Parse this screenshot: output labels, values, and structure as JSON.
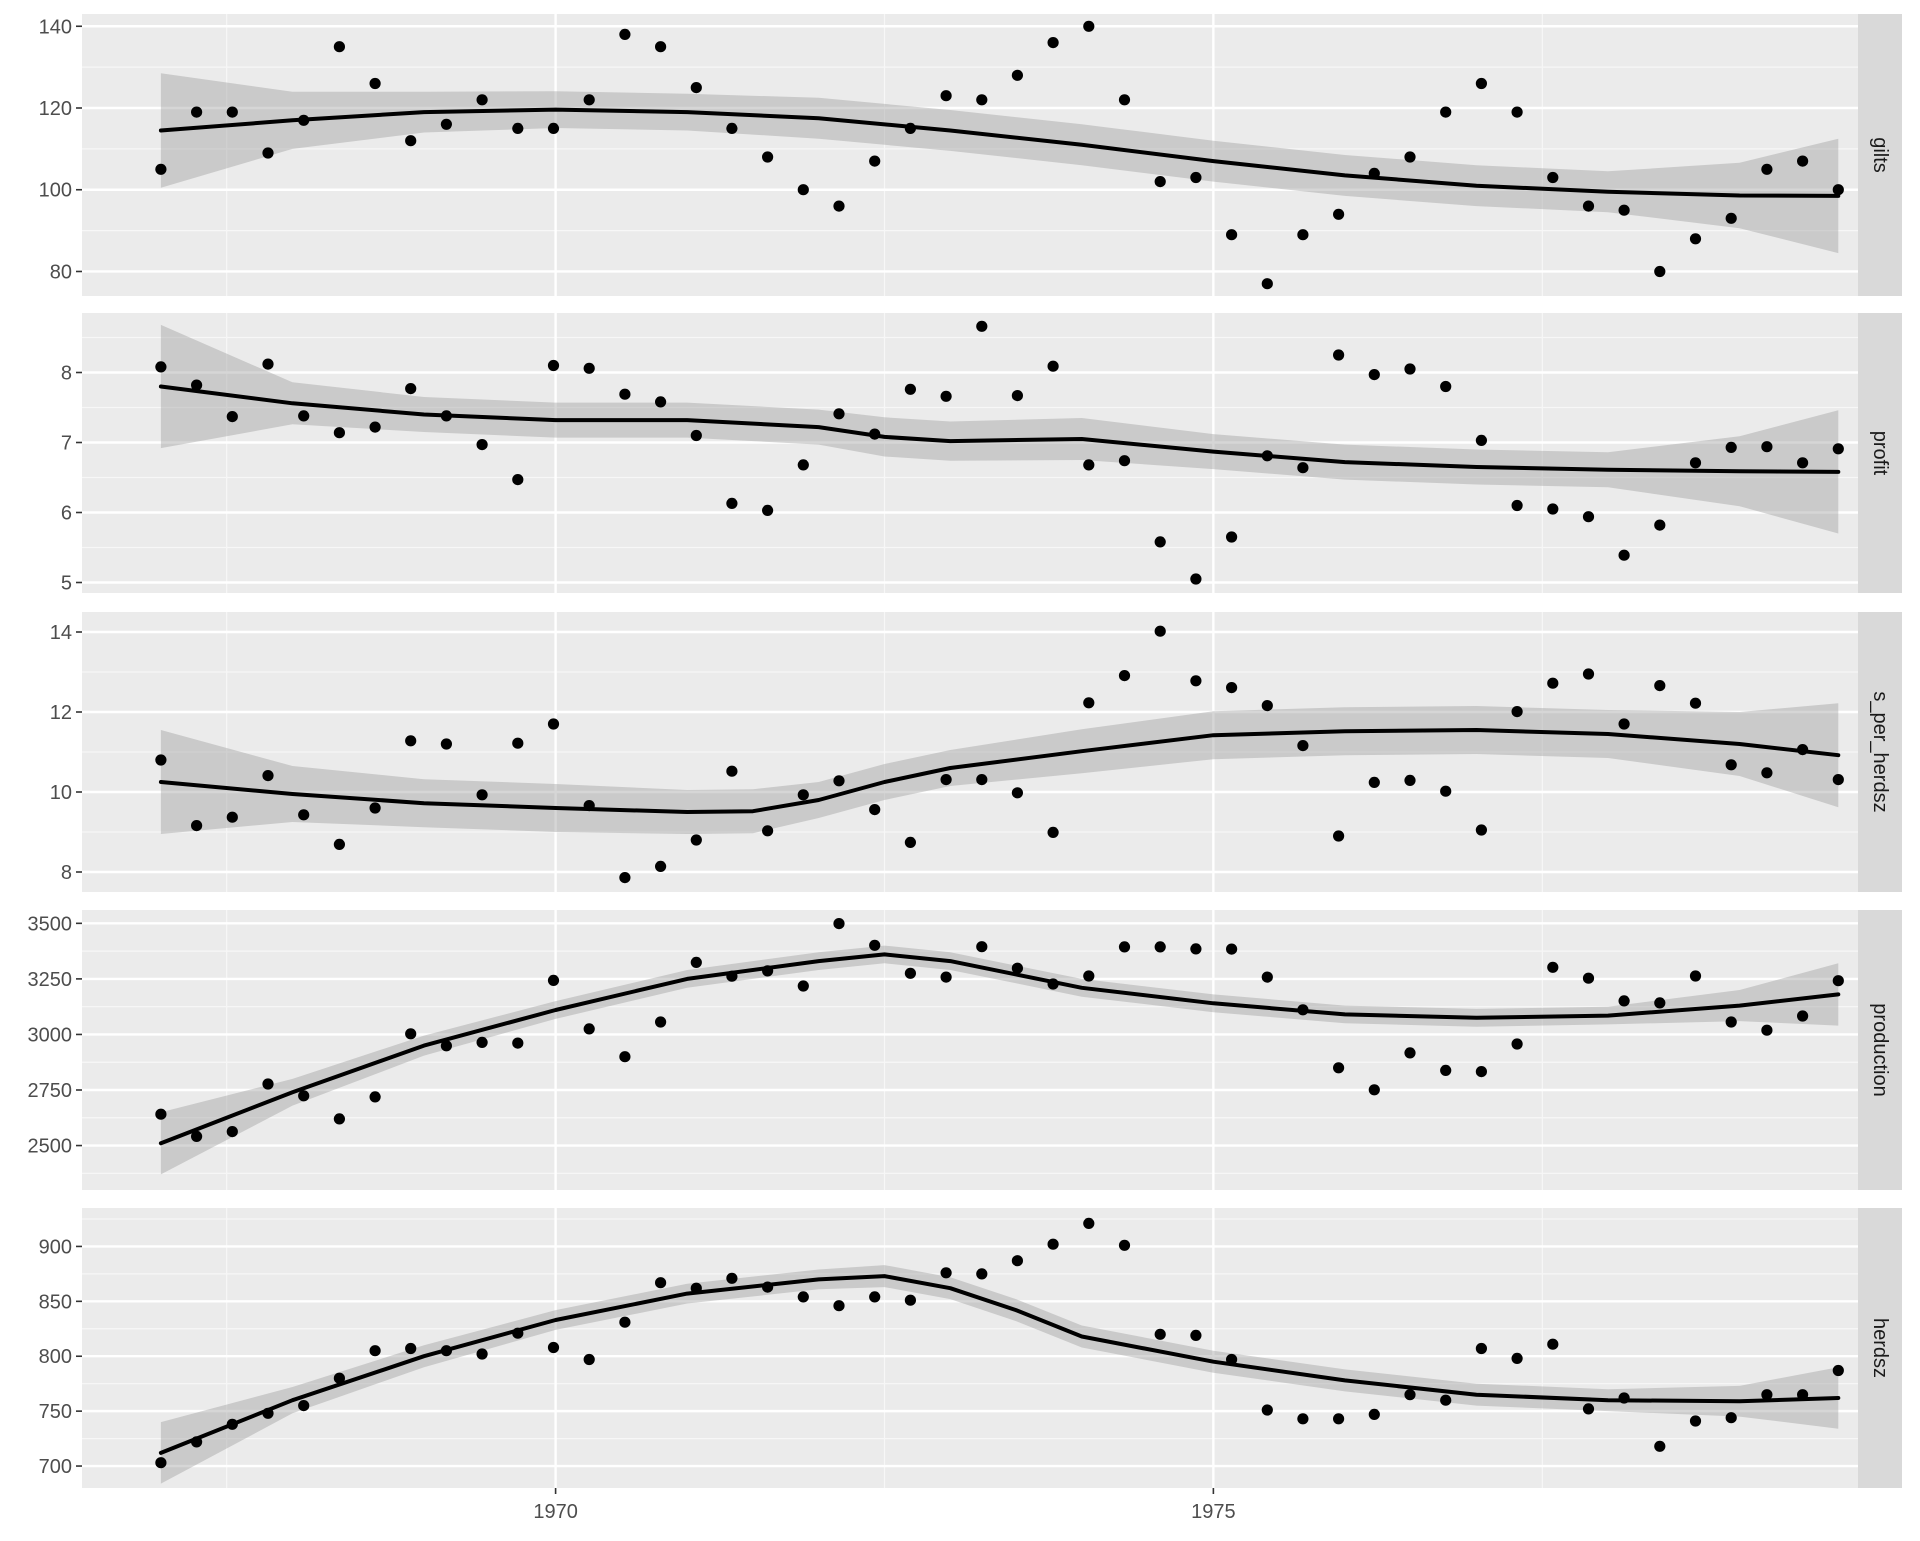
{
  "chart_data": {
    "type": "scatter",
    "x_axis": {
      "range": [
        1966.4,
        1979.9
      ],
      "ticks": [
        1970,
        1975
      ],
      "tick_labels": [
        "1970",
        "1975"
      ]
    },
    "facets": [
      {
        "label": "gilts",
        "ylim": [
          74,
          143
        ],
        "yticks": [
          80,
          100,
          120,
          140
        ],
        "points": [
          105,
          119,
          119,
          109,
          117,
          135,
          126,
          112,
          116,
          122,
          115,
          115,
          122,
          138,
          135,
          125,
          115,
          108,
          100,
          96,
          107,
          115,
          123,
          122,
          128,
          136,
          140,
          122,
          102,
          103,
          89,
          77,
          89,
          94,
          104,
          108,
          119,
          126,
          119,
          103,
          96,
          95,
          80,
          88,
          93,
          105,
          107,
          100
        ],
        "smooth": [
          [
            1967,
            114.5
          ],
          [
            1968,
            117
          ],
          [
            1969,
            119
          ],
          [
            1970,
            119.6
          ],
          [
            1971,
            119
          ],
          [
            1972,
            117.5
          ],
          [
            1973,
            114.5
          ],
          [
            1974,
            111
          ],
          [
            1975,
            107
          ],
          [
            1976,
            103.5
          ],
          [
            1977,
            101
          ],
          [
            1978,
            99.5
          ],
          [
            1979,
            98.6
          ],
          [
            1979.75,
            98.5
          ]
        ],
        "band_halfwidth": [
          14,
          7,
          5,
          4.5,
          4.5,
          5,
          5,
          5,
          5,
          5,
          5,
          5,
          8,
          14
        ]
      },
      {
        "label": "profit",
        "ylim": [
          4.85,
          8.85
        ],
        "yticks": [
          5,
          6,
          7,
          8
        ],
        "points": [
          8.08,
          7.82,
          7.37,
          8.12,
          7.38,
          7.14,
          7.22,
          7.77,
          7.38,
          6.97,
          6.47,
          8.1,
          8.06,
          7.69,
          7.58,
          7.1,
          6.13,
          6.03,
          6.68,
          7.41,
          7.12,
          7.76,
          7.66,
          8.66,
          7.67,
          8.09,
          6.68,
          6.74,
          5.58,
          5.05,
          5.65,
          6.81,
          6.64,
          8.25,
          7.97,
          8.05,
          7.8,
          7.03,
          6.1,
          6.05,
          5.94,
          5.39,
          5.82,
          6.71,
          6.93,
          6.94,
          6.71,
          6.91
        ],
        "smooth": [
          [
            1967,
            7.8
          ],
          [
            1968,
            7.56
          ],
          [
            1969,
            7.4
          ],
          [
            1970,
            7.32
          ],
          [
            1971,
            7.32
          ],
          [
            1972,
            7.22
          ],
          [
            1972.5,
            7.08
          ],
          [
            1973,
            7.02
          ],
          [
            1974,
            7.05
          ],
          [
            1975,
            6.87
          ],
          [
            1976,
            6.72
          ],
          [
            1977,
            6.65
          ],
          [
            1978,
            6.61
          ],
          [
            1979,
            6.59
          ],
          [
            1979.75,
            6.58
          ]
        ],
        "band_halfwidth": [
          0.88,
          0.3,
          0.25,
          0.25,
          0.25,
          0.25,
          0.28,
          0.28,
          0.3,
          0.25,
          0.25,
          0.25,
          0.25,
          0.5,
          0.88
        ]
      },
      {
        "label": "s_per_herdsz",
        "ylim": [
          7.5,
          14.5
        ],
        "yticks": [
          8,
          10,
          12,
          14
        ],
        "points": [
          10.8,
          9.16,
          9.37,
          10.41,
          9.43,
          8.69,
          9.6,
          11.28,
          11.2,
          9.93,
          11.22,
          11.7,
          9.66,
          7.86,
          8.14,
          8.8,
          10.52,
          9.03,
          9.93,
          10.28,
          9.56,
          8.74,
          10.31,
          10.31,
          9.98,
          8.99,
          12.23,
          12.91,
          14.02,
          12.78,
          12.61,
          12.16,
          11.16,
          8.9,
          10.24,
          10.29,
          10.02,
          9.05,
          12.01,
          12.72,
          12.95,
          11.7,
          12.66,
          12.22,
          10.68,
          10.48,
          11.06,
          10.31
        ],
        "smooth": [
          [
            1967,
            10.25
          ],
          [
            1968,
            9.95
          ],
          [
            1969,
            9.72
          ],
          [
            1970,
            9.6
          ],
          [
            1971,
            9.5
          ],
          [
            1971.5,
            9.52
          ],
          [
            1972,
            9.8
          ],
          [
            1972.5,
            10.25
          ],
          [
            1973,
            10.6
          ],
          [
            1974,
            11.02
          ],
          [
            1975,
            11.42
          ],
          [
            1976,
            11.52
          ],
          [
            1977,
            11.55
          ],
          [
            1978,
            11.45
          ],
          [
            1979,
            11.2
          ],
          [
            1979.75,
            10.92
          ]
        ],
        "band_halfwidth": [
          1.3,
          0.7,
          0.6,
          0.6,
          0.55,
          0.55,
          0.45,
          0.45,
          0.45,
          0.55,
          0.6,
          0.6,
          0.6,
          0.6,
          0.8,
          1.3
        ]
      },
      {
        "label": "production",
        "ylim": [
          2300,
          3560
        ],
        "yticks": [
          2500,
          2750,
          3000,
          3250,
          3500
        ],
        "points": [
          2641,
          2541,
          2563,
          2777,
          2724,
          2620,
          2719,
          3003,
          2949,
          2964,
          2961,
          3243,
          3025,
          2900,
          3056,
          3324,
          3262,
          3286,
          3218,
          3499,
          3401,
          3275,
          3258,
          3395,
          3298,
          3227,
          3263,
          3394,
          3394,
          3385,
          3384,
          3258,
          3111,
          2850,
          2751,
          2917,
          2838,
          2833,
          2957,
          3302,
          3253,
          3151,
          3142,
          3263,
          3056,
          3019,
          3083,
          3242
        ],
        "smooth": [
          [
            1967,
            2510
          ],
          [
            1968,
            2740
          ],
          [
            1969,
            2950
          ],
          [
            1970,
            3110
          ],
          [
            1971,
            3250
          ],
          [
            1972,
            3330
          ],
          [
            1972.5,
            3360
          ],
          [
            1973,
            3330
          ],
          [
            1973.5,
            3270
          ],
          [
            1974,
            3210
          ],
          [
            1975,
            3140
          ],
          [
            1976,
            3090
          ],
          [
            1977,
            3075
          ],
          [
            1978,
            3085
          ],
          [
            1979,
            3130
          ],
          [
            1979.75,
            3180
          ]
        ],
        "band_halfwidth": [
          140,
          60,
          45,
          40,
          40,
          40,
          40,
          40,
          40,
          40,
          40,
          40,
          40,
          40,
          70,
          140
        ]
      },
      {
        "label": "herdsz",
        "ylim": [
          680,
          935
        ],
        "yticks": [
          700,
          750,
          800,
          850,
          900
        ],
        "points": [
          703,
          722,
          738,
          748,
          755,
          780,
          805,
          807,
          805,
          802,
          821,
          808,
          797,
          831,
          867,
          862,
          871,
          863,
          854,
          846,
          854,
          851,
          876,
          875,
          887,
          902,
          921,
          901,
          820,
          819,
          797,
          751,
          743,
          743,
          747,
          765,
          760,
          807,
          798,
          811,
          752,
          762,
          718,
          741,
          744,
          765,
          765,
          787
        ],
        "smooth": [
          [
            1967,
            712
          ],
          [
            1968,
            760
          ],
          [
            1969,
            800
          ],
          [
            1970,
            833
          ],
          [
            1971,
            857
          ],
          [
            1972,
            870
          ],
          [
            1972.5,
            873
          ],
          [
            1973,
            862
          ],
          [
            1973.5,
            842
          ],
          [
            1974,
            818
          ],
          [
            1975,
            795
          ],
          [
            1976,
            778
          ],
          [
            1977,
            765
          ],
          [
            1978,
            760
          ],
          [
            1979,
            759
          ],
          [
            1979.75,
            762
          ]
        ],
        "band_halfwidth": [
          28,
          12,
          10,
          9,
          9,
          9,
          10,
          10,
          10,
          10,
          10,
          10,
          10,
          10,
          14,
          28
        ]
      }
    ]
  }
}
